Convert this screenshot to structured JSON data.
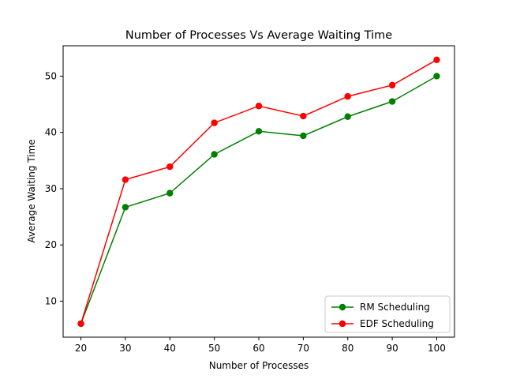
{
  "chart_data": {
    "type": "line",
    "title": "Number of Processes Vs Average Waiting Time",
    "xlabel": "Number of Processes",
    "ylabel": "Average Waiting Time",
    "x": [
      20,
      30,
      40,
      50,
      60,
      70,
      80,
      90,
      100
    ],
    "xlim": [
      16,
      104
    ],
    "ylim": [
      3.6,
      55.4
    ],
    "xticks": [
      20,
      30,
      40,
      50,
      60,
      70,
      80,
      90,
      100
    ],
    "yticks": [
      10,
      20,
      30,
      40,
      50
    ],
    "grid": false,
    "legend_position": "lower-right",
    "series": [
      {
        "name": "RM Scheduling",
        "color": "#008000",
        "marker": "circle",
        "values": [
          6.0,
          26.7,
          29.2,
          36.1,
          40.2,
          39.4,
          42.8,
          45.5,
          50.0
        ]
      },
      {
        "name": "EDF Scheduling",
        "color": "#ff0000",
        "marker": "circle",
        "values": [
          6.0,
          31.6,
          33.9,
          41.7,
          44.7,
          42.9,
          46.4,
          48.4,
          52.9
        ]
      }
    ]
  }
}
